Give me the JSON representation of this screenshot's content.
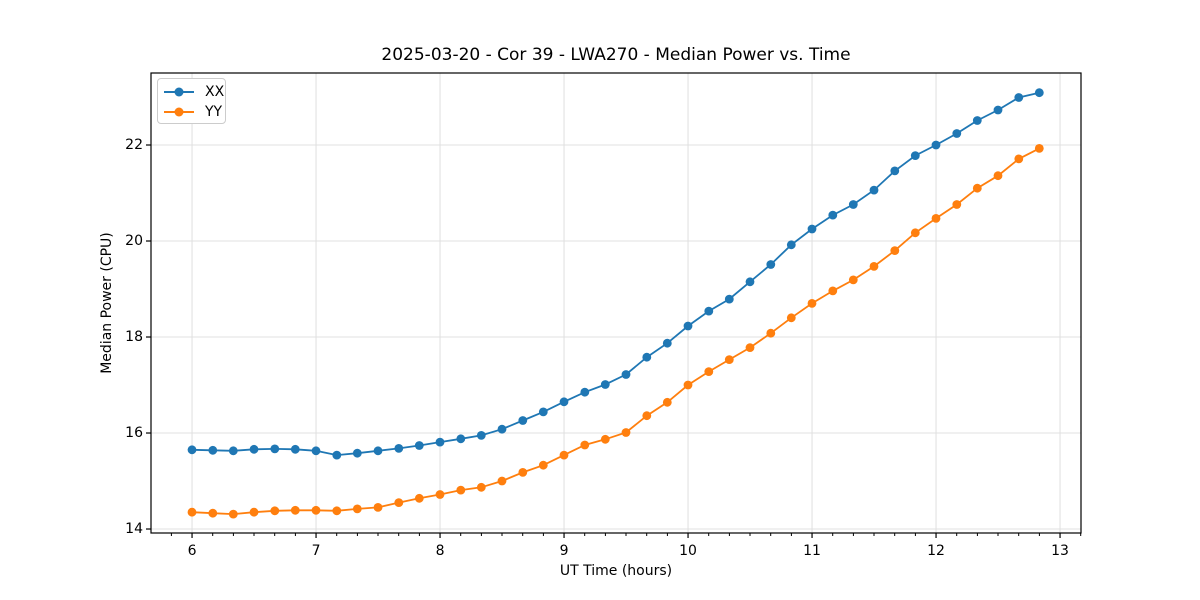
{
  "chart_data": {
    "type": "line",
    "title": "2025-03-20 - Cor 39 - LWA270 - Median Power vs. Time",
    "xlabel": "UT Time (hours)",
    "ylabel": "Median Power (CPU)",
    "xlim": [
      5.669,
      13.169
    ],
    "ylim": [
      13.917,
      23.5
    ],
    "x_ticks": [
      6,
      7,
      8,
      9,
      10,
      11,
      12,
      13
    ],
    "y_ticks": [
      14,
      16,
      18,
      20,
      22
    ],
    "x_minor_step": 0.1666667,
    "grid": true,
    "grid_color": "#e0e0e0",
    "spine_color": "#000000",
    "legend_position": "upper left",
    "x": [
      6.0,
      6.167,
      6.333,
      6.5,
      6.667,
      6.833,
      7.0,
      7.167,
      7.333,
      7.5,
      7.667,
      7.833,
      8.0,
      8.167,
      8.333,
      8.5,
      8.667,
      8.833,
      9.0,
      9.167,
      9.333,
      9.5,
      9.667,
      9.833,
      10.0,
      10.167,
      10.333,
      10.5,
      10.667,
      10.833,
      11.0,
      11.167,
      11.333,
      11.5,
      11.667,
      11.833,
      12.0,
      12.167,
      12.333,
      12.5,
      12.667,
      12.833
    ],
    "series": [
      {
        "name": "XX",
        "color": "#1f77b4",
        "values": [
          15.65,
          15.64,
          15.63,
          15.66,
          15.67,
          15.66,
          15.63,
          15.54,
          15.58,
          15.63,
          15.68,
          15.74,
          15.81,
          15.88,
          15.95,
          16.08,
          16.26,
          16.44,
          16.65,
          16.85,
          17.01,
          17.22,
          17.58,
          17.87,
          18.23,
          18.54,
          18.79,
          19.15,
          19.51,
          19.92,
          20.25,
          20.54,
          20.76,
          21.06,
          21.46,
          21.78,
          22.0,
          22.24,
          22.51,
          22.73,
          22.99,
          23.09
        ]
      },
      {
        "name": "YY",
        "color": "#ff7f0e",
        "values": [
          14.35,
          14.33,
          14.31,
          14.35,
          14.38,
          14.39,
          14.39,
          14.38,
          14.42,
          14.45,
          14.55,
          14.64,
          14.72,
          14.81,
          14.87,
          15.0,
          15.18,
          15.33,
          15.54,
          15.75,
          15.87,
          16.01,
          16.36,
          16.64,
          17.0,
          17.28,
          17.53,
          17.78,
          18.08,
          18.4,
          18.7,
          18.96,
          19.19,
          19.47,
          19.8,
          20.17,
          20.47,
          20.76,
          21.1,
          21.36,
          21.71,
          21.93
        ]
      }
    ]
  }
}
